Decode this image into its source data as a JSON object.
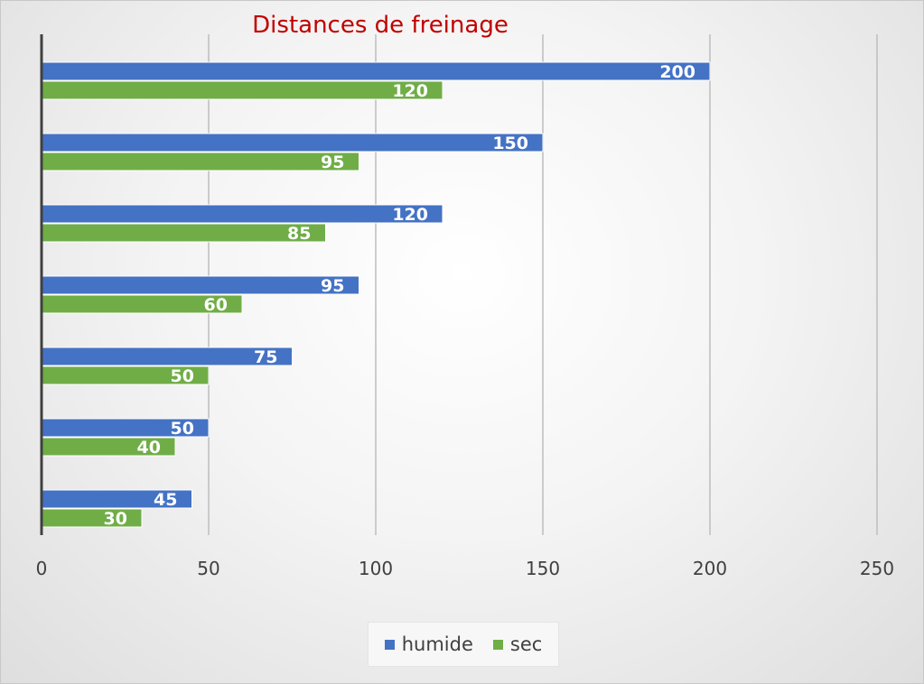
{
  "chart_data": {
    "type": "bar",
    "orientation": "horizontal",
    "title": "Distances de freinage",
    "xlabel": "",
    "ylabel": "",
    "xlim": [
      0,
      250
    ],
    "x_ticks": [
      0,
      50,
      100,
      150,
      200,
      250
    ],
    "grid": true,
    "legend_position": "bottom",
    "series": [
      {
        "name": "humide",
        "color": "#4472c4",
        "values": [
          200,
          150,
          120,
          95,
          75,
          50,
          45
        ]
      },
      {
        "name": "sec",
        "color": "#70ad47",
        "values": [
          120,
          95,
          85,
          60,
          50,
          40,
          30
        ]
      }
    ]
  }
}
